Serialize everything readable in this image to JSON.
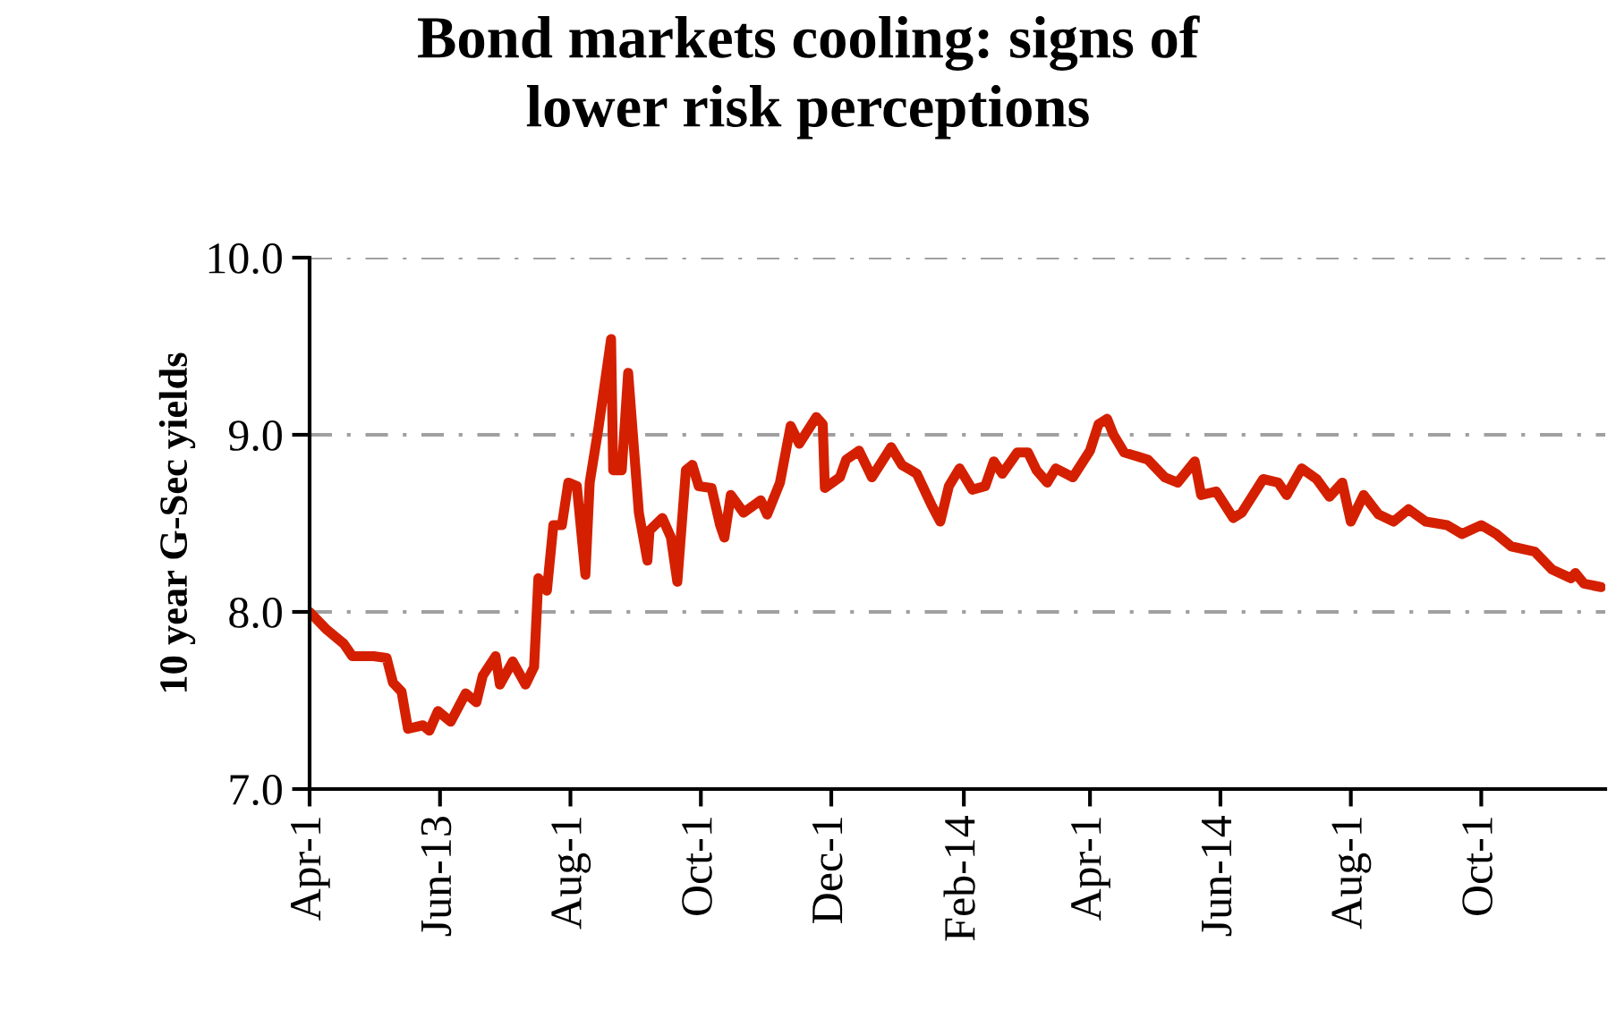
{
  "chart_data": {
    "type": "line",
    "title": "Bond markets cooling: signs of\nlower risk perceptions",
    "ylabel": "10 year G-Sec yields",
    "x": [
      "2013-04-01",
      "2013-04-09",
      "2013-04-17",
      "2013-04-21",
      "2013-05-01",
      "2013-05-07",
      "2013-05-10",
      "2013-05-14",
      "2013-05-17",
      "2013-05-24",
      "2013-05-27",
      "2013-05-31",
      "2013-06-06",
      "2013-06-13",
      "2013-06-18",
      "2013-06-21",
      "2013-06-27",
      "2013-06-29",
      "2013-07-05",
      "2013-07-11",
      "2013-07-15",
      "2013-07-17",
      "2013-07-21",
      "2013-07-24",
      "2013-07-28",
      "2013-07-31",
      "2013-08-04",
      "2013-08-08",
      "2013-08-10",
      "2013-08-14",
      "2013-08-20",
      "2013-08-21",
      "2013-08-25",
      "2013-08-28",
      "2013-09-02",
      "2013-09-06",
      "2013-09-07",
      "2013-09-13",
      "2013-09-17",
      "2013-09-20",
      "2013-09-24",
      "2013-09-27",
      "2013-09-30",
      "2013-10-06",
      "2013-10-10",
      "2013-10-12",
      "2013-10-15",
      "2013-10-21",
      "2013-10-29",
      "2013-11-01",
      "2013-11-07",
      "2013-11-12",
      "2013-11-16",
      "2013-11-24",
      "2013-11-27",
      "2013-11-28",
      "2013-12-05",
      "2013-12-08",
      "2013-12-14",
      "2013-12-20",
      "2013-12-29",
      "2014-01-03",
      "2014-01-10",
      "2014-01-17",
      "2014-01-21",
      "2014-01-25",
      "2014-01-30",
      "2014-02-05",
      "2014-02-11",
      "2014-02-15",
      "2014-02-19",
      "2014-02-26",
      "2014-03-03",
      "2014-03-07",
      "2014-03-12",
      "2014-03-16",
      "2014-03-24",
      "2014-04-01",
      "2014-04-05",
      "2014-04-09",
      "2014-04-12",
      "2014-04-17",
      "2014-04-28",
      "2014-05-06",
      "2014-05-12",
      "2014-05-20",
      "2014-05-23",
      "2014-05-30",
      "2014-06-07",
      "2014-06-11",
      "2014-06-21",
      "2014-06-28",
      "2014-07-02",
      "2014-07-09",
      "2014-07-16",
      "2014-07-22",
      "2014-07-28",
      "2014-08-01",
      "2014-08-07",
      "2014-08-14",
      "2014-08-21",
      "2014-08-28",
      "2014-09-05",
      "2014-09-15",
      "2014-09-22",
      "2014-10-01",
      "2014-10-08",
      "2014-10-15",
      "2014-10-26",
      "2014-11-03",
      "2014-11-12",
      "2014-11-14",
      "2014-11-18",
      "2014-11-26"
    ],
    "series": [
      {
        "color": "#d42000",
        "values": [
          8.0,
          7.9,
          7.82,
          7.75,
          7.75,
          7.74,
          7.6,
          7.55,
          7.34,
          7.36,
          7.33,
          7.44,
          7.38,
          7.54,
          7.49,
          7.64,
          7.75,
          7.59,
          7.72,
          7.59,
          7.69,
          8.19,
          8.12,
          8.49,
          8.49,
          8.73,
          8.71,
          8.21,
          8.73,
          9.03,
          9.54,
          8.8,
          8.8,
          9.35,
          8.56,
          8.29,
          8.46,
          8.53,
          8.42,
          8.17,
          8.8,
          8.83,
          8.71,
          8.7,
          8.49,
          8.42,
          8.66,
          8.56,
          8.63,
          8.55,
          8.73,
          9.05,
          8.95,
          9.1,
          9.06,
          8.7,
          8.76,
          8.86,
          8.91,
          8.76,
          8.93,
          8.83,
          8.78,
          8.6,
          8.51,
          8.71,
          8.81,
          8.69,
          8.71,
          8.85,
          8.78,
          8.9,
          8.9,
          8.8,
          8.73,
          8.81,
          8.76,
          8.91,
          9.06,
          9.09,
          9.0,
          8.9,
          8.86,
          8.76,
          8.73,
          8.85,
          8.66,
          8.68,
          8.53,
          8.56,
          8.75,
          8.73,
          8.66,
          8.81,
          8.75,
          8.65,
          8.73,
          8.51,
          8.66,
          8.55,
          8.51,
          8.58,
          8.51,
          8.49,
          8.44,
          8.49,
          8.44,
          8.37,
          8.34,
          8.24,
          8.19,
          8.22,
          8.16,
          8.14
        ]
      }
    ],
    "xlim": [
      "2013-04-01",
      "2014-11-28"
    ],
    "xticks": [
      {
        "value": "2013-04-01",
        "label": "Apr-1"
      },
      {
        "value": "2013-06-01",
        "label": "Jun-13"
      },
      {
        "value": "2013-08-01",
        "label": "Aug-1"
      },
      {
        "value": "2013-10-01",
        "label": "Oct-1"
      },
      {
        "value": "2013-12-01",
        "label": "Dec-1"
      },
      {
        "value": "2014-02-01",
        "label": "Feb-14"
      },
      {
        "value": "2014-04-01",
        "label": "Apr-1"
      },
      {
        "value": "2014-06-01",
        "label": "Jun-14"
      },
      {
        "value": "2014-08-01",
        "label": "Aug-1"
      },
      {
        "value": "2014-10-01",
        "label": "Oct-1"
      }
    ],
    "ylim": [
      7,
      10
    ],
    "yticks": [
      {
        "value": 7,
        "label": "7.0"
      },
      {
        "value": 8,
        "label": "8.0"
      },
      {
        "value": 9,
        "label": "9.0"
      },
      {
        "value": 10,
        "label": "10.0"
      }
    ],
    "grid": "y",
    "line_style": "solid",
    "marker": "none",
    "legend": false
  }
}
